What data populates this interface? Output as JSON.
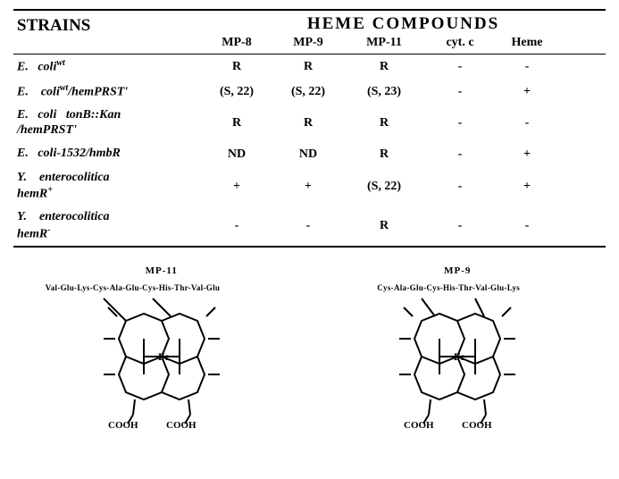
{
  "header": {
    "strains": "STRAINS",
    "heme": "HEME  COMPOUNDS",
    "cols": {
      "mp8": "MP-8",
      "mp9": "MP-9",
      "mp11": "MP-11",
      "cytc": "cyt.   c",
      "heme": "Heme"
    }
  },
  "rows": [
    {
      "strain_html": "E.&nbsp;&nbsp;&nbsp;coli<sup>wt</sup>",
      "mp8": "R",
      "mp9": "R",
      "mp11": "R",
      "cytc": "-",
      "heme": "-"
    },
    {
      "strain_html": "E.&nbsp;&nbsp;&nbsp;&nbsp;coli<sup>wt</sup>/hemPRST'",
      "mp8": "(S,  22)",
      "mp9": "(S,  22)",
      "mp11": "(S,  23)",
      "cytc": "-",
      "heme": "+"
    },
    {
      "strain_html": "E.&nbsp;&nbsp;&nbsp;coli&nbsp;&nbsp;&nbsp;tonB::Kan<br>/hemPRST'",
      "mp8": "R",
      "mp9": "R",
      "mp11": "R",
      "cytc": "-",
      "heme": "-"
    },
    {
      "strain_html": "E.&nbsp;&nbsp;&nbsp;coli-1532/hmbR",
      "mp8": "ND",
      "mp9": "ND",
      "mp11": "R",
      "cytc": "-",
      "heme": "+"
    },
    {
      "strain_html": "Y.&nbsp;&nbsp;&nbsp;&nbsp;enterocolitica<br>hemR<sup>+</sup>",
      "mp8": "+",
      "mp9": "+",
      "mp11": "(S,  22)",
      "cytc": "-",
      "heme": "+"
    },
    {
      "strain_html": "Y.&nbsp;&nbsp;&nbsp;&nbsp;enterocolitica<br>hemR<sup>-</sup>",
      "mp8": "-",
      "mp9": "-",
      "mp11": "R",
      "cytc": "-",
      "heme": "-"
    }
  ],
  "diagrams": {
    "left": {
      "title": "MP-11",
      "peptide": "Val-Glu-Lys-Cys-Ala-Glu-Cys-His-Thr-Val-Glu"
    },
    "right": {
      "title": "MP-9",
      "peptide": "Cys-Ala-Glu-Cys-His-Thr-Val-Glu-Lys"
    }
  },
  "style": {
    "table_font_size": 14,
    "header_font_size": 19,
    "diagram_title_size": 11,
    "peptide_font_size": 9,
    "background": "#ffffff",
    "line_color": "#000000"
  }
}
